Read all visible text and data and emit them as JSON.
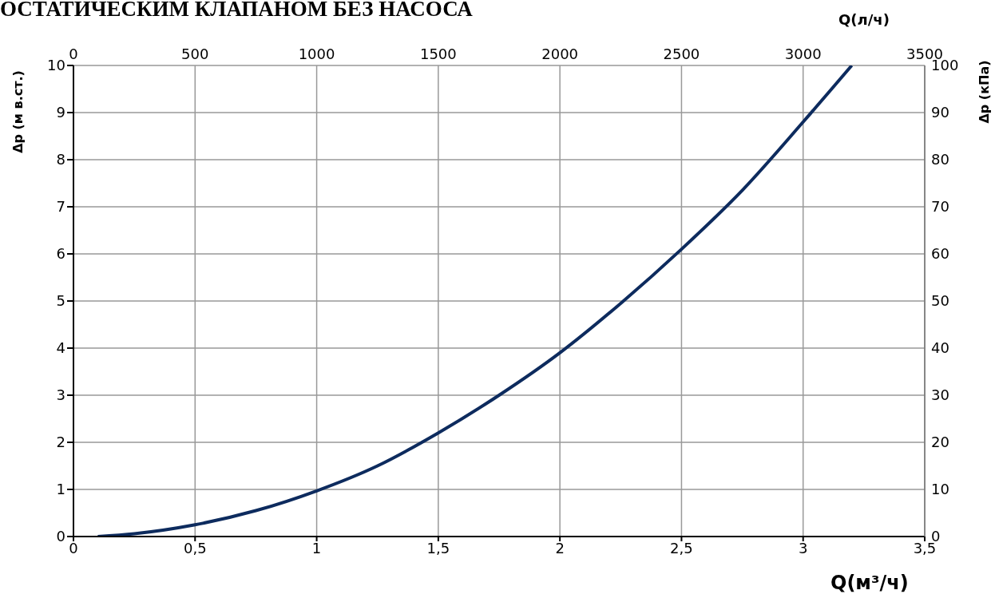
{
  "chart_data": {
    "type": "line",
    "title": "ОСТАТИЧЕСКИМ КЛАПАНОМ БЕЗ НАСОСА",
    "xlabel": "Q(м³/ч)",
    "ylabel": "Δp (м в.ст.)",
    "x2label": "Q(л/ч)",
    "y2label": "Δp (кПа)",
    "x": [
      0.1,
      0.25,
      0.5,
      0.75,
      1.0,
      1.25,
      1.5,
      1.75,
      2.0,
      2.25,
      2.5,
      2.75,
      3.0,
      3.2
    ],
    "series": [
      {
        "color": "#0d2b5e",
        "values": [
          0,
          0.06,
          0.25,
          0.55,
          0.97,
          1.5,
          2.2,
          3.0,
          3.9,
          4.95,
          6.1,
          7.35,
          8.8,
          10
        ]
      }
    ],
    "xlim": [
      0,
      3.5
    ],
    "xticks": [
      0,
      {
        "value": 0.5,
        "label": "0,5"
      },
      1,
      {
        "value": 1.5,
        "label": "1,5"
      },
      2,
      {
        "value": 2.5,
        "label": "2,5"
      },
      3,
      {
        "value": 3.5,
        "label": "3,5"
      }
    ],
    "ylim": [
      0,
      10
    ],
    "yticks": [
      0,
      1,
      2,
      3,
      4,
      5,
      6,
      7,
      8,
      9,
      10
    ],
    "x2lim": [
      0,
      3500
    ],
    "x2ticks": [
      0,
      500,
      1000,
      1500,
      2000,
      2500,
      3000,
      3500
    ],
    "y2lim": [
      0,
      100
    ],
    "y2ticks": [
      0,
      10,
      20,
      30,
      40,
      50,
      60,
      70,
      80,
      90,
      100
    ],
    "grid": true
  }
}
